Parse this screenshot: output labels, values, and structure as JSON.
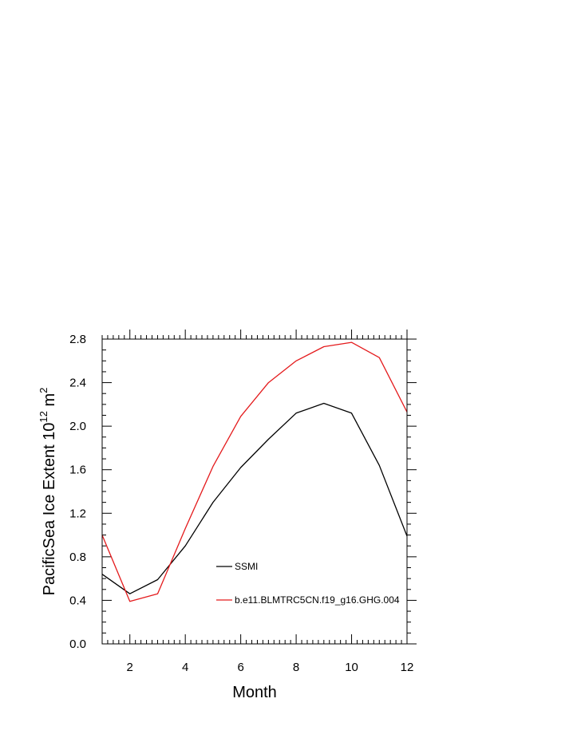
{
  "chart_data": {
    "type": "line",
    "xlabel": "Month",
    "ylabel_main": "PacificSea Ice Extent 10",
    "ylabel_sup": "12",
    "ylabel_unit": " m",
    "ylabel_unit_sup": "2",
    "xlim": [
      1,
      12
    ],
    "ylim": [
      0.0,
      2.8
    ],
    "x_ticks": [
      2,
      4,
      6,
      8,
      10,
      12
    ],
    "y_ticks": [
      0.0,
      0.4,
      0.8,
      1.2,
      1.6,
      2.0,
      2.4,
      2.8
    ],
    "y_tick_labels": [
      "0.0",
      "0.4",
      "0.8",
      "1.2",
      "1.6",
      "2.0",
      "2.4",
      "2.8"
    ],
    "legend_position": "inside-bottom-center",
    "series": [
      {
        "name": "SSMI",
        "color": "#000000",
        "x": [
          1,
          2,
          3,
          4,
          5,
          6,
          7,
          8,
          9,
          10,
          11,
          12
        ],
        "values": [
          0.64,
          0.46,
          0.59,
          0.9,
          1.3,
          1.62,
          1.88,
          2.12,
          2.21,
          2.12,
          1.64,
          0.99
        ]
      },
      {
        "name": "b.e11.BLMTRC5CN.f19_g16.GHG.004",
        "color": "#e41a1c",
        "x": [
          1,
          2,
          3,
          4,
          5,
          6,
          7,
          8,
          9,
          10,
          11,
          12
        ],
        "values": [
          1.0,
          0.39,
          0.46,
          1.06,
          1.63,
          2.09,
          2.4,
          2.6,
          2.73,
          2.77,
          2.63,
          2.13
        ]
      }
    ]
  }
}
